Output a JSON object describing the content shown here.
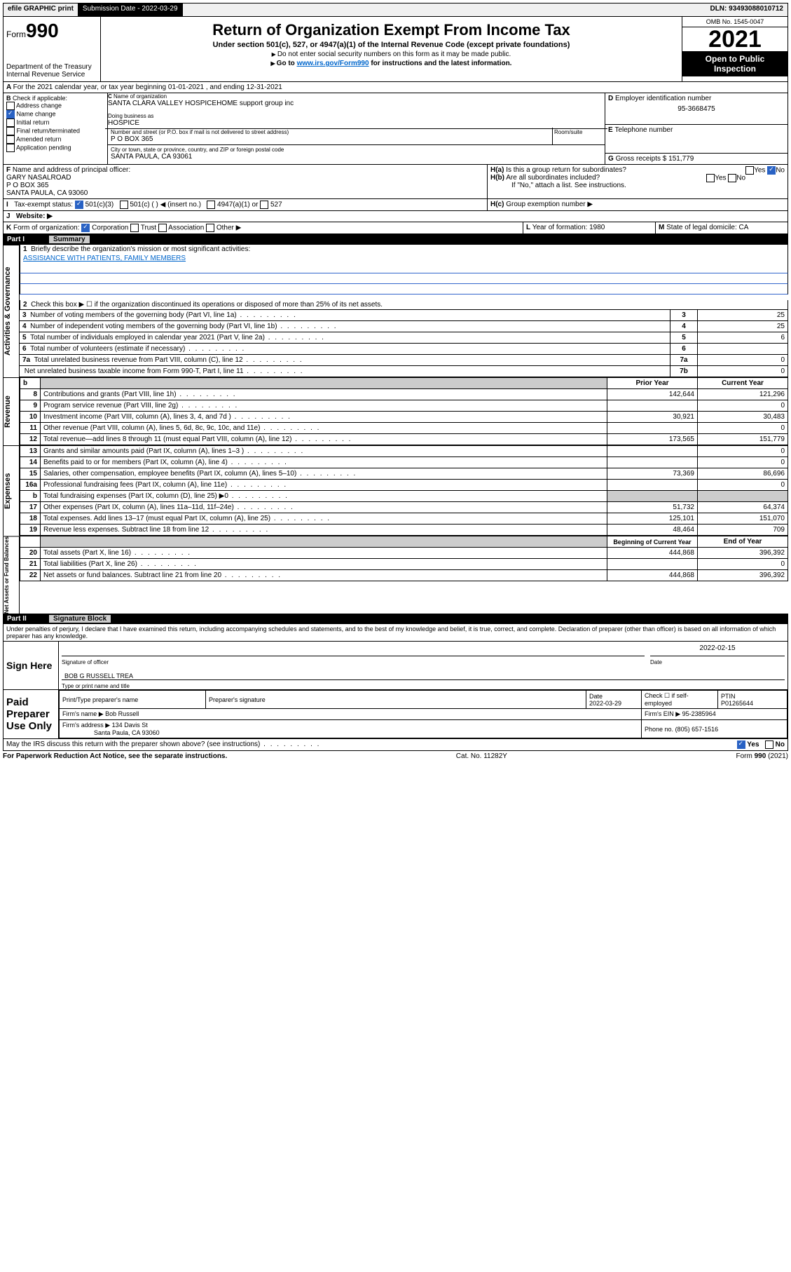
{
  "topbar": {
    "efile": "efile GRAPHIC print",
    "subdate_label": "Submission Date - 2022-03-29",
    "dln": "DLN: 93493088010712"
  },
  "header": {
    "form_prefix": "Form",
    "form_num": "990",
    "dept": "Department of the Treasury",
    "irs": "Internal Revenue Service",
    "title": "Return of Organization Exempt From Income Tax",
    "subtitle": "Under section 501(c), 527, or 4947(a)(1) of the Internal Revenue Code (except private foundations)",
    "note1": "Do not enter social security numbers on this form as it may be made public.",
    "note2_pre": "Go to ",
    "note2_link": "www.irs.gov/Form990",
    "note2_post": " for instructions and the latest information.",
    "omb": "OMB No. 1545-0047",
    "year": "2021",
    "open": "Open to Public Inspection"
  },
  "period": {
    "line": "For the 2021 calendar year, or tax year beginning 01-01-2021   , and ending 12-31-2021"
  },
  "blockB": {
    "label": "Check if applicable:",
    "addr": "Address change",
    "name": "Name change",
    "init": "Initial return",
    "final": "Final return/terminated",
    "amend": "Amended return",
    "app": "Application pending"
  },
  "blockC": {
    "name_label": "Name of organization",
    "name": "SANTA CLARA VALLEY HOSPICEHOME support group inc",
    "dba_label": "Doing business as",
    "dba": "HOSPICE",
    "addr_label": "Number and street (or P.O. box if mail is not delivered to street address)",
    "room_label": "Room/suite",
    "addr": "P O BOX 365",
    "city_label": "City or town, state or province, country, and ZIP or foreign postal code",
    "city": "SANTA PAULA, CA  93061"
  },
  "blockD": {
    "label": "Employer identification number",
    "val": "95-3668475"
  },
  "blockE": {
    "label": "Telephone number"
  },
  "blockG": {
    "label": "Gross receipts $",
    "val": "151,779"
  },
  "blockF": {
    "label": "Name and address of principal officer:",
    "name": "GARY NASALROAD",
    "addr1": "P O BOX 365",
    "addr2": "SANTA PAULA, CA  93060"
  },
  "blockH": {
    "a": "Is this a group return for subordinates?",
    "b": "Are all subordinates included?",
    "ifno": "If \"No,\" attach a list. See instructions.",
    "c": "Group exemption number ▶",
    "yes": "Yes",
    "no": "No"
  },
  "blockI": {
    "label": "Tax-exempt status:",
    "c3": "501(c)(3)",
    "c": "501(c) (  ) ◀ (insert no.)",
    "a1": "4947(a)(1) or",
    "s527": "527"
  },
  "blockJ": {
    "label": "Website: ▶"
  },
  "blockK": {
    "label": "Form of organization:",
    "corp": "Corporation",
    "trust": "Trust",
    "assoc": "Association",
    "other": "Other ▶"
  },
  "blockL": {
    "label": "Year of formation:",
    "val": "1980"
  },
  "blockM": {
    "label": "State of legal domicile:",
    "val": "CA"
  },
  "part1": {
    "num": "Part I",
    "title": "Summary",
    "l1": "Briefly describe the organization's mission or most significant activities:",
    "l1val": "ASSIStANCE WITH PATIENTS, FAMILY MEMBERS",
    "l2": "Check this box ▶ ☐  if the organization discontinued its operations or disposed of more than 25% of its net assets.",
    "rows_gov": [
      {
        "n": "3",
        "t": "Number of voting members of the governing body (Part VI, line 1a)",
        "c": "3",
        "v": "25"
      },
      {
        "n": "4",
        "t": "Number of independent voting members of the governing body (Part VI, line 1b)",
        "c": "4",
        "v": "25"
      },
      {
        "n": "5",
        "t": "Total number of individuals employed in calendar year 2021 (Part V, line 2a)",
        "c": "5",
        "v": "6"
      },
      {
        "n": "6",
        "t": "Total number of volunteers (estimate if necessary)",
        "c": "6",
        "v": ""
      },
      {
        "n": "7a",
        "t": "Total unrelated business revenue from Part VIII, column (C), line 12",
        "c": "7a",
        "v": "0"
      },
      {
        "n": "",
        "t": "Net unrelated business taxable income from Form 990-T, Part I, line 11",
        "c": "7b",
        "v": "0"
      }
    ],
    "head_b": "b",
    "py": "Prior Year",
    "cy": "Current Year",
    "rows_rev": [
      {
        "n": "8",
        "t": "Contributions and grants (Part VIII, line 1h)",
        "p": "142,644",
        "c": "121,296"
      },
      {
        "n": "9",
        "t": "Program service revenue (Part VIII, line 2g)",
        "p": "",
        "c": "0"
      },
      {
        "n": "10",
        "t": "Investment income (Part VIII, column (A), lines 3, 4, and 7d )",
        "p": "30,921",
        "c": "30,483"
      },
      {
        "n": "11",
        "t": "Other revenue (Part VIII, column (A), lines 5, 6d, 8c, 9c, 10c, and 11e)",
        "p": "",
        "c": "0"
      },
      {
        "n": "12",
        "t": "Total revenue—add lines 8 through 11 (must equal Part VIII, column (A), line 12)",
        "p": "173,565",
        "c": "151,779"
      }
    ],
    "rows_exp": [
      {
        "n": "13",
        "t": "Grants and similar amounts paid (Part IX, column (A), lines 1–3 )",
        "p": "",
        "c": "0"
      },
      {
        "n": "14",
        "t": "Benefits paid to or for members (Part IX, column (A), line 4)",
        "p": "",
        "c": "0"
      },
      {
        "n": "15",
        "t": "Salaries, other compensation, employee benefits (Part IX, column (A), lines 5–10)",
        "p": "73,369",
        "c": "86,696"
      },
      {
        "n": "16a",
        "t": "Professional fundraising fees (Part IX, column (A), line 11e)",
        "p": "",
        "c": "0"
      },
      {
        "n": "b",
        "t": "Total fundraising expenses (Part IX, column (D), line 25) ▶0",
        "p": "shaded",
        "c": "shaded"
      },
      {
        "n": "17",
        "t": "Other expenses (Part IX, column (A), lines 11a–11d, 11f–24e)",
        "p": "51,732",
        "c": "64,374"
      },
      {
        "n": "18",
        "t": "Total expenses. Add lines 13–17 (must equal Part IX, column (A), line 25)",
        "p": "125,101",
        "c": "151,070"
      },
      {
        "n": "19",
        "t": "Revenue less expenses. Subtract line 18 from line 12",
        "p": "48,464",
        "c": "709"
      }
    ],
    "bcy": "Beginning of Current Year",
    "eoy": "End of Year",
    "rows_net": [
      {
        "n": "20",
        "t": "Total assets (Part X, line 16)",
        "p": "444,868",
        "c": "396,392"
      },
      {
        "n": "21",
        "t": "Total liabilities (Part X, line 26)",
        "p": "",
        "c": "0"
      },
      {
        "n": "22",
        "t": "Net assets or fund balances. Subtract line 21 from line 20",
        "p": "444,868",
        "c": "396,392"
      }
    ],
    "vlabels": {
      "gov": "Activities & Governance",
      "rev": "Revenue",
      "exp": "Expenses",
      "net": "Net Assets or Fund Balances"
    }
  },
  "part2": {
    "num": "Part II",
    "title": "Signature Block",
    "decl": "Under penalties of perjury, I declare that I have examined this return, including accompanying schedules and statements, and to the best of my knowledge and belief, it is true, correct, and complete. Declaration of preparer (other than officer) is based on all information of which preparer has any knowledge.",
    "sign_here": "Sign Here",
    "sig_officer": "Signature of officer",
    "date_l": "Date",
    "date_v": "2022-02-15",
    "name_officer": "BOB G RUSSELL  TREA",
    "type_name": "Type or print name and title",
    "paid": "Paid Preparer Use Only",
    "pt_name_l": "Print/Type preparer's name",
    "pt_sig_l": "Preparer's signature",
    "pt_date_l": "Date",
    "pt_date_v": "2022-03-29",
    "pt_check": "Check ☐ if self-employed",
    "ptin_l": "PTIN",
    "ptin_v": "P01265644",
    "firm_name_l": "Firm's name   ▶",
    "firm_name": "Bob Russell",
    "firm_ein_l": "Firm's EIN ▶",
    "firm_ein": "95-2385964",
    "firm_addr_l": "Firm's address ▶",
    "firm_addr": "134 Davis St",
    "firm_city": "Santa Paula, CA  93060",
    "phone_l": "Phone no.",
    "phone": "(805) 657-1516",
    "may": "May the IRS discuss this return with the preparer shown above? (see instructions)"
  },
  "footer": {
    "l": "For Paperwork Reduction Act Notice, see the separate instructions.",
    "m": "Cat. No. 11282Y",
    "r": "Form 990 (2021)"
  }
}
